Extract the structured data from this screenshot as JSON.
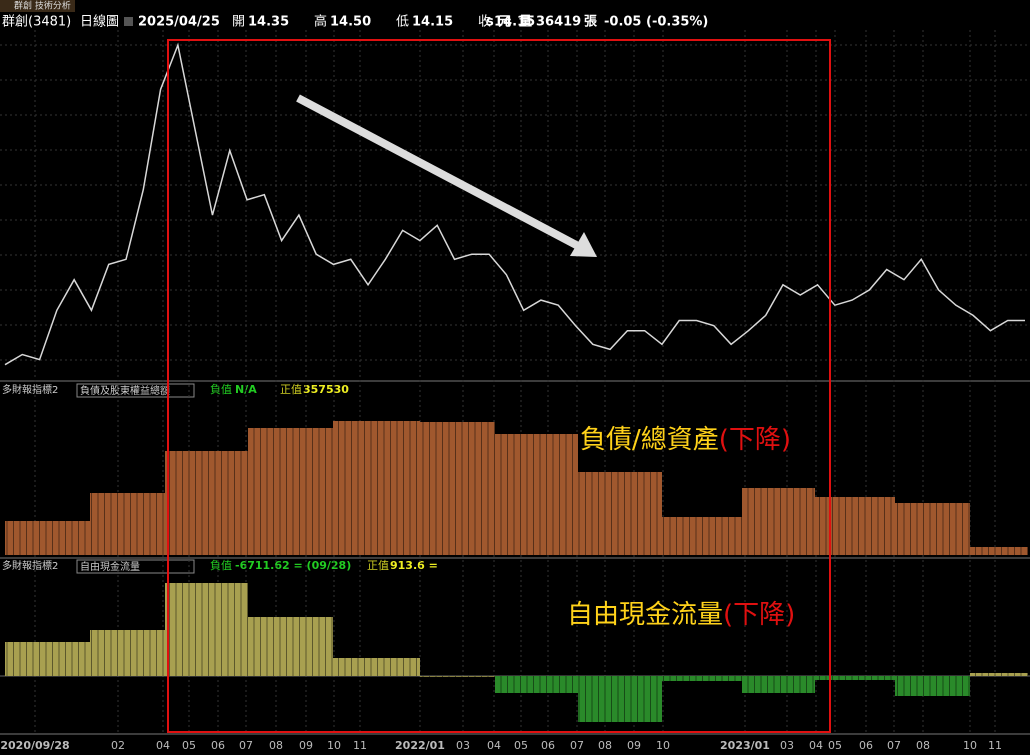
{
  "header": {
    "tab": "群創 技術分析",
    "stock": "群創(3481)",
    "period": "日線圖",
    "date": "2025/04/25",
    "fields": [
      {
        "label": "開",
        "value": "14.35"
      },
      {
        "label": "高",
        "value": "14.50"
      },
      {
        "label": "低",
        "value": "14.15"
      },
      {
        "label": "收",
        "value": "14.15"
      }
    ],
    "unit": "s 元",
    "volume_label": "量",
    "volume": "36419",
    "volume_unit": "張",
    "change": "-0.05 (-0.35%)"
  },
  "chart_data": [
    {
      "type": "line",
      "color": "#d8d8d8",
      "ylim": [
        10,
        30
      ],
      "values": [
        10.9,
        11.5,
        11.2,
        14.1,
        15.9,
        14.1,
        16.8,
        17.1,
        21.2,
        27.1,
        29.7,
        24.7,
        19.7,
        23.5,
        20.6,
        20.9,
        18.2,
        19.7,
        17.4,
        16.8,
        17.1,
        15.6,
        17.1,
        18.8,
        18.2,
        19.1,
        17.1,
        17.4,
        17.4,
        16.2,
        14.1,
        14.7,
        14.4,
        13.2,
        12.1,
        11.8,
        12.9,
        12.9,
        12.1,
        13.5,
        13.5,
        13.2,
        12.1,
        12.9,
        13.8,
        15.6,
        15.0,
        15.6,
        14.4,
        14.7,
        15.3,
        16.5,
        15.9,
        17.1,
        15.3,
        14.4,
        13.8,
        12.9,
        13.5,
        13.5
      ]
    },
    {
      "type": "bar",
      "indicator": "多財報指標2",
      "field": "負債及股東權益總額",
      "neg_label": "負值",
      "neg_value": "N/A",
      "pos_label": "正值",
      "pos_value": "357530",
      "color": "#a0582e",
      "ylim": [
        0,
        170
      ],
      "values": [
        34,
        62,
        104,
        127,
        134,
        133,
        121,
        83,
        38,
        67,
        58,
        52,
        8
      ]
    },
    {
      "type": "bar",
      "indicator": "多財報指標2",
      "field": "自由現金流量",
      "neg_label": "負值",
      "neg_value": "-6711.62 = (09/28)",
      "pos_label": "正值",
      "pos_value": "913.6 =",
      "color": "#a8a050",
      "neg_color": "#2a8a2a",
      "ylim": [
        -54,
        116
      ],
      "values": [
        34,
        46,
        93,
        59,
        18,
        0,
        -17,
        -46,
        -5,
        -17,
        -4,
        -20,
        3
      ]
    }
  ],
  "x_axis": {
    "labels": [
      "2020/09/28",
      "02",
      "04",
      "05",
      "06",
      "07",
      "08",
      "09",
      "10",
      "11",
      "2022/01",
      "03",
      "04",
      "05",
      "06",
      "07",
      "08",
      "09",
      "10",
      "2023/01",
      "03",
      "04",
      "05",
      "06",
      "07",
      "08",
      "10",
      "11"
    ]
  },
  "annotations": {
    "debt_ratio": "負債/總資產",
    "debt_trend": "(下降)",
    "fcf": "自由現金流量",
    "fcf_trend": "(下降)"
  }
}
